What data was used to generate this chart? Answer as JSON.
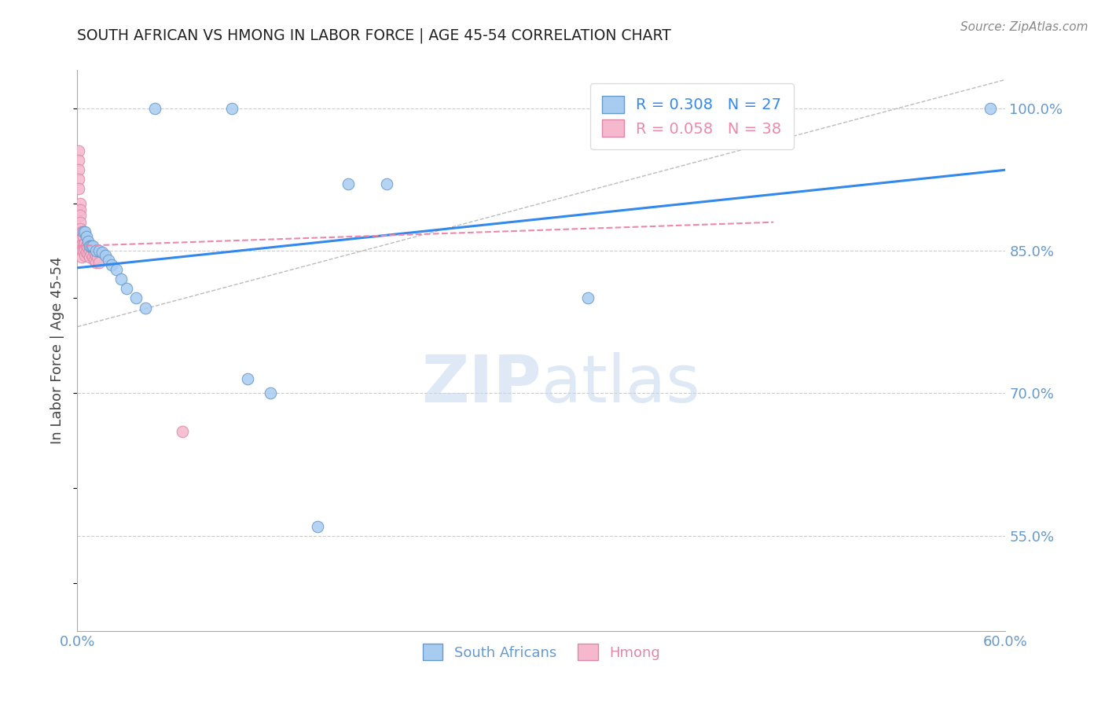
{
  "title": "SOUTH AFRICAN VS HMONG IN LABOR FORCE | AGE 45-54 CORRELATION CHART",
  "source": "Source: ZipAtlas.com",
  "ylabel": "In Labor Force | Age 45-54",
  "xlim": [
    0.0,
    0.6
  ],
  "ylim": [
    0.45,
    1.04
  ],
  "yticks": [
    0.55,
    0.7,
    0.85,
    1.0
  ],
  "ytick_labels": [
    "55.0%",
    "70.0%",
    "85.0%",
    "100.0%"
  ],
  "xticks": [
    0.0,
    0.1,
    0.2,
    0.3,
    0.4,
    0.5,
    0.6
  ],
  "xtick_labels": [
    "0.0%",
    "",
    "",
    "",
    "",
    "",
    "60.0%"
  ],
  "south_african_x": [
    0.05,
    0.1,
    0.175,
    0.2,
    0.59,
    0.004,
    0.005,
    0.006,
    0.007,
    0.008,
    0.009,
    0.01,
    0.012,
    0.014,
    0.016,
    0.018,
    0.02,
    0.022,
    0.025,
    0.028,
    0.032,
    0.038,
    0.044,
    0.11,
    0.125,
    0.155,
    0.33
  ],
  "south_african_y": [
    1.0,
    1.0,
    0.92,
    0.92,
    1.0,
    0.87,
    0.87,
    0.865,
    0.86,
    0.855,
    0.855,
    0.855,
    0.85,
    0.85,
    0.848,
    0.845,
    0.84,
    0.835,
    0.83,
    0.82,
    0.81,
    0.8,
    0.79,
    0.715,
    0.7,
    0.56,
    0.8
  ],
  "hmong_x": [
    0.001,
    0.001,
    0.001,
    0.001,
    0.001,
    0.002,
    0.002,
    0.002,
    0.002,
    0.002,
    0.002,
    0.003,
    0.003,
    0.003,
    0.003,
    0.003,
    0.004,
    0.004,
    0.004,
    0.005,
    0.005,
    0.005,
    0.006,
    0.006,
    0.007,
    0.007,
    0.008,
    0.008,
    0.009,
    0.01,
    0.01,
    0.011,
    0.011,
    0.012,
    0.012,
    0.013,
    0.014,
    0.068
  ],
  "hmong_y": [
    0.955,
    0.945,
    0.935,
    0.925,
    0.915,
    0.9,
    0.893,
    0.887,
    0.88,
    0.873,
    0.86,
    0.87,
    0.863,
    0.857,
    0.85,
    0.843,
    0.865,
    0.857,
    0.85,
    0.858,
    0.852,
    0.845,
    0.855,
    0.848,
    0.853,
    0.847,
    0.85,
    0.843,
    0.847,
    0.852,
    0.843,
    0.848,
    0.84,
    0.845,
    0.838,
    0.843,
    0.838,
    0.66
  ],
  "south_african_color": "#a8ccf0",
  "hmong_color": "#f5b8cc",
  "south_african_edge": "#6699cc",
  "hmong_edge": "#dd88aa",
  "regression_blue_color": "#3388ee",
  "regression_pink_color": "#ee88aa",
  "r_sa": 0.308,
  "n_sa": 27,
  "r_hmong": 0.058,
  "n_hmong": 38,
  "legend_sa_label": "South Africans",
  "legend_hmong_label": "Hmong",
  "watermark_zip": "ZIP",
  "watermark_atlas": "atlas",
  "watermark_color_zip": "#c5d8f0",
  "watermark_color_atlas": "#c5d8f0",
  "title_color": "#222222",
  "axis_label_color": "#444444",
  "tick_color": "#6699cc",
  "grid_color": "#cccccc",
  "background_color": "#ffffff",
  "diag_line_x": [
    0.0,
    0.6
  ],
  "diag_line_y": [
    0.77,
    1.03
  ]
}
